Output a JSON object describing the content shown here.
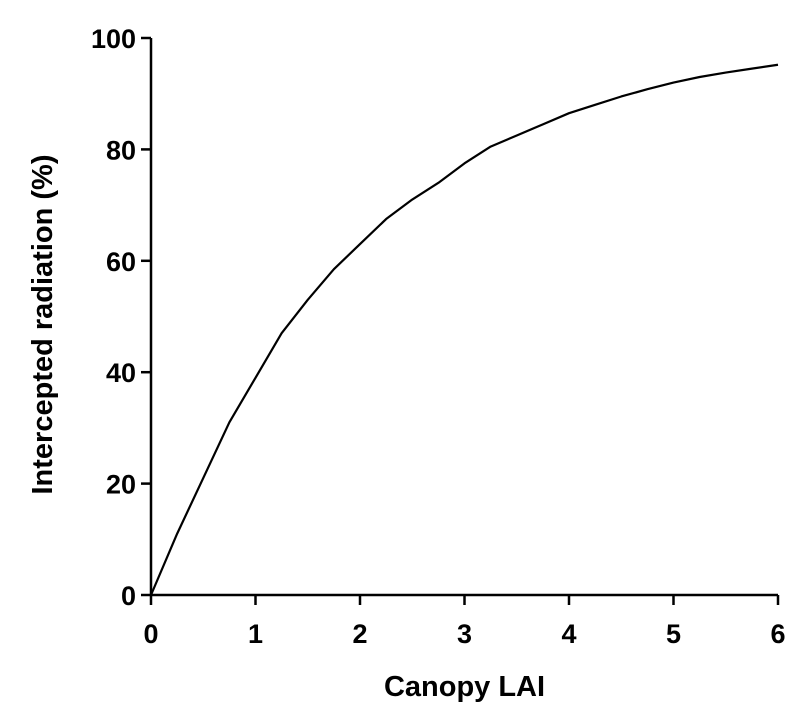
{
  "chart_data": {
    "type": "line",
    "title": "",
    "xlabel": "Canopy LAI",
    "ylabel": "Intercepted radiation (%)",
    "xlim": [
      0,
      6
    ],
    "ylim": [
      0,
      100
    ],
    "xticks": [
      0,
      1,
      2,
      3,
      4,
      5,
      6
    ],
    "yticks": [
      0,
      20,
      40,
      60,
      80,
      100
    ],
    "xtick_labels": [
      "0",
      "1",
      "2",
      "3",
      "4",
      "5",
      "6"
    ],
    "ytick_labels": [
      "0",
      "20",
      "40",
      "60",
      "80",
      "100"
    ],
    "grid": false,
    "legend": "none",
    "series": [
      {
        "x": [
          0,
          0.25,
          0.5,
          0.75,
          1.0,
          1.25,
          1.5,
          1.75,
          2.0,
          2.25,
          2.5,
          2.75,
          3.0,
          3.25,
          3.5,
          3.75,
          4.0,
          4.25,
          4.5,
          4.75,
          5.0,
          5.25,
          5.5,
          5.75,
          6.0
        ],
        "y": [
          0,
          11,
          21,
          31,
          39,
          47,
          53,
          58.5,
          63,
          67.5,
          71,
          74,
          77.5,
          80.5,
          82.5,
          84.5,
          86.5,
          88,
          89.5,
          90.8,
          92,
          93,
          93.8,
          94.5,
          95.2
        ],
        "color": "#000000"
      }
    ]
  }
}
